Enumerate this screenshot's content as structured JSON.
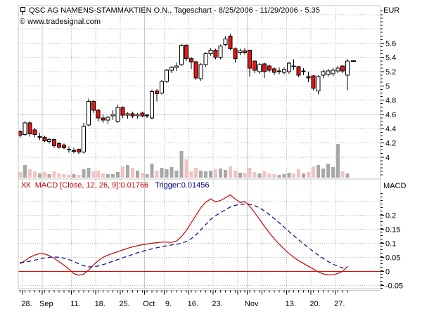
{
  "header": {
    "title": "QSC AG NAMENS-STAMMAKTIEN O.N., Tageschart - 8/25/2006 - 11/29/2006 - 5.35",
    "copyright": "© www.tradesignal.com"
  },
  "indicator_header": {
    "prefix": "XX",
    "macd": "MACD [Close, 12, 26, 9]:0.01766",
    "trigger": "Trigger:0.01456"
  },
  "axes": {
    "price": {
      "unit": "EUR",
      "tick_labels": [
        "5.6",
        "5.4",
        "5.2",
        "5",
        "4.8",
        "4.6",
        "4.4",
        "4.2",
        "4"
      ],
      "minor_step": 0.05,
      "solid_grid_level": 4.6
    },
    "macd": {
      "unit": "MACD",
      "tick_labels": [
        "0.2",
        "0.15",
        "0.1",
        "0.05",
        "0",
        "-0.05"
      ],
      "dotted_grid_levels": [
        0.25,
        0.2,
        0.15,
        0.1,
        0.05,
        -0.05
      ]
    },
    "time": {
      "labels": [
        {
          "text": "28.",
          "boundary_index": 1
        },
        {
          "text": "Sep",
          "boundary_index": 5
        },
        {
          "text": "11.",
          "boundary_index": 11
        },
        {
          "text": "18.",
          "boundary_index": 16
        },
        {
          "text": "25.",
          "boundary_index": 21
        },
        {
          "text": "Oct",
          "boundary_index": 26
        },
        {
          "text": "9.",
          "boundary_index": 30
        },
        {
          "text": "16.",
          "boundary_index": 35
        },
        {
          "text": "23.",
          "boundary_index": 40
        },
        {
          "text": "Nov",
          "boundary_index": 47
        },
        {
          "text": "13.",
          "boundary_index": 55
        },
        {
          "text": "20.",
          "boundary_index": 60
        },
        {
          "text": "27.",
          "boundary_index": 65
        }
      ],
      "week_grid_indices": [
        1,
        11,
        16,
        21,
        30,
        35,
        40,
        45,
        50,
        55,
        60,
        65
      ],
      "month_grid_indices": [
        5,
        26,
        47
      ],
      "major_tick_indices": [
        1,
        5,
        11,
        16,
        21,
        26,
        30,
        35,
        40,
        45,
        47,
        50,
        55,
        60,
        65
      ]
    }
  },
  "colors": {
    "grid_dotted": "#b6b6b6",
    "grid_solid": "#c9c9c9",
    "border": "#c4c4c4",
    "candle_up": "#ffffff",
    "candle_down": "#ee1111",
    "candle_stroke": "#000000",
    "volume_up": "#a8a8a8",
    "volume_down": "#f2c3c3",
    "macd_line": "#cc0000",
    "trigger_line": "#000080",
    "zero_line": "#dd0000"
  },
  "chart_data": [
    {
      "type": "candlestick",
      "title": "QSC AG daily price with volume",
      "unit": "EUR",
      "ylim": [
        3.7,
        6.13
      ],
      "last_price_marker": 5.35,
      "dates": [
        "8/25",
        "8/28",
        "8/29",
        "8/30",
        "8/31",
        "9/1",
        "9/4",
        "9/5",
        "9/6",
        "9/7",
        "9/8",
        "9/11",
        "9/12",
        "9/13",
        "9/14",
        "9/15",
        "9/18",
        "9/19",
        "9/20",
        "9/21",
        "9/22",
        "9/25",
        "9/26",
        "9/27",
        "9/28",
        "9/29",
        "10/2",
        "10/4",
        "10/5",
        "10/6",
        "10/9",
        "10/10",
        "10/11",
        "10/12",
        "10/13",
        "10/16",
        "10/17",
        "10/18",
        "10/19",
        "10/20",
        "10/23",
        "10/24",
        "10/25",
        "10/26",
        "10/27",
        "10/30",
        "10/31",
        "11/1",
        "11/2",
        "11/3",
        "11/6",
        "11/7",
        "11/8",
        "11/9",
        "11/10",
        "11/13",
        "11/14",
        "11/15",
        "11/16",
        "11/17",
        "11/20",
        "11/21",
        "11/22",
        "11/23",
        "11/24",
        "11/27",
        "11/28",
        "11/29"
      ],
      "open": [
        4.36,
        4.32,
        4.48,
        4.38,
        4.28,
        4.28,
        4.22,
        4.25,
        4.19,
        4.17,
        4.11,
        4.09,
        4.11,
        4.07,
        4.45,
        4.78,
        4.66,
        4.55,
        4.52,
        4.58,
        4.5,
        4.7,
        4.59,
        4.61,
        4.58,
        4.62,
        4.58,
        4.55,
        4.93,
        4.9,
        5.06,
        5.22,
        5.26,
        5.3,
        5.57,
        5.38,
        5.34,
        5.1,
        5.3,
        5.45,
        5.5,
        5.4,
        5.58,
        5.7,
        5.52,
        5.47,
        5.49,
        5.5,
        5.35,
        5.2,
        5.31,
        5.28,
        5.24,
        5.21,
        5.19,
        5.2,
        5.28,
        5.27,
        5.2,
        5.13,
        5.14,
        4.93,
        5.15,
        5.16,
        5.17,
        5.21,
        5.28,
        5.15
      ],
      "high": [
        4.38,
        4.51,
        4.5,
        4.41,
        4.34,
        4.3,
        4.27,
        4.26,
        4.21,
        4.19,
        4.15,
        4.13,
        4.12,
        4.48,
        4.82,
        4.8,
        4.68,
        4.6,
        4.58,
        4.66,
        4.73,
        4.71,
        4.63,
        4.64,
        4.62,
        4.64,
        4.61,
        4.95,
        4.96,
        5.08,
        5.24,
        5.28,
        5.33,
        5.59,
        5.59,
        5.4,
        5.35,
        5.32,
        5.47,
        5.53,
        5.52,
        5.58,
        5.7,
        5.73,
        5.54,
        5.52,
        5.53,
        5.51,
        5.36,
        5.32,
        5.33,
        5.3,
        5.26,
        5.26,
        5.26,
        5.34,
        5.37,
        5.28,
        5.25,
        5.2,
        5.15,
        5.15,
        5.23,
        5.24,
        5.25,
        5.28,
        5.29,
        5.37
      ],
      "low": [
        4.27,
        4.3,
        4.29,
        4.28,
        4.24,
        4.21,
        4.19,
        4.13,
        4.12,
        4.11,
        4.06,
        4.05,
        4.04,
        4.05,
        4.43,
        4.62,
        4.5,
        4.48,
        4.46,
        4.52,
        4.48,
        4.55,
        4.54,
        4.55,
        4.54,
        4.56,
        4.55,
        4.53,
        4.78,
        4.88,
        5.04,
        5.18,
        5.21,
        5.28,
        5.35,
        5.24,
        5.08,
        5.07,
        5.27,
        5.42,
        5.37,
        5.37,
        5.56,
        5.5,
        5.33,
        5.43,
        5.44,
        5.13,
        5.18,
        5.17,
        5.11,
        5.19,
        5.15,
        5.16,
        5.16,
        5.17,
        5.22,
        5.12,
        5.15,
        5.05,
        4.94,
        4.88,
        5.11,
        5.13,
        5.14,
        5.18,
        5.18,
        4.94
      ],
      "close": [
        4.31,
        4.48,
        4.33,
        4.32,
        4.29,
        4.23,
        4.25,
        4.16,
        4.14,
        4.13,
        4.1,
        4.09,
        4.07,
        4.43,
        4.78,
        4.66,
        4.55,
        4.52,
        4.56,
        4.6,
        4.7,
        4.59,
        4.61,
        4.58,
        4.6,
        4.58,
        4.59,
        4.92,
        4.89,
        5.06,
        5.22,
        5.26,
        5.28,
        5.57,
        5.38,
        5.34,
        5.11,
        5.3,
        5.45,
        5.5,
        5.4,
        5.56,
        5.66,
        5.52,
        5.38,
        5.49,
        5.47,
        5.25,
        5.22,
        5.3,
        5.2,
        5.22,
        5.19,
        5.21,
        5.23,
        5.32,
        5.27,
        5.15,
        5.21,
        5.11,
        4.97,
        5.13,
        5.2,
        5.21,
        5.22,
        5.25,
        5.21,
        5.35
      ],
      "volume_rel": [
        8,
        18,
        12,
        9,
        6,
        8,
        5,
        9,
        6,
        5,
        4,
        5,
        4,
        12,
        14,
        9,
        10,
        6,
        5,
        5,
        8,
        16,
        18,
        14,
        10,
        7,
        5,
        20,
        10,
        14,
        12,
        15,
        10,
        38,
        26,
        9,
        14,
        10,
        9,
        10,
        12,
        13,
        11,
        16,
        10,
        7,
        7,
        14,
        8,
        6,
        9,
        6,
        5,
        4,
        5,
        7,
        6,
        12,
        6,
        8,
        16,
        18,
        13,
        20,
        15,
        48,
        9,
        6
      ]
    },
    {
      "type": "line",
      "title": "MACD [Close, 12, 26, 9]",
      "ylim": [
        -0.061,
        0.322
      ],
      "current_macd": 0.01766,
      "current_trigger": 0.01456,
      "series": [
        {
          "name": "MACD",
          "style": "solid",
          "values": [
            0.027,
            0.038,
            0.05,
            0.058,
            0.063,
            0.062,
            0.056,
            0.046,
            0.034,
            0.022,
            0.008,
            -0.008,
            -0.014,
            -0.01,
            0.004,
            0.022,
            0.038,
            0.05,
            0.058,
            0.064,
            0.07,
            0.076,
            0.082,
            0.087,
            0.091,
            0.095,
            0.097,
            0.1,
            0.102,
            0.104,
            0.104,
            0.103,
            0.108,
            0.123,
            0.145,
            0.172,
            0.2,
            0.227,
            0.246,
            0.258,
            0.247,
            0.252,
            0.262,
            0.272,
            0.258,
            0.245,
            0.248,
            0.232,
            0.209,
            0.185,
            0.16,
            0.137,
            0.116,
            0.097,
            0.08,
            0.064,
            0.05,
            0.038,
            0.028,
            0.018,
            0.008,
            -0.002,
            -0.009,
            -0.013,
            -0.012,
            -0.008,
            0.0,
            0.01766
          ]
        },
        {
          "name": "Trigger",
          "style": "dashed",
          "values": [
            0.031,
            0.033,
            0.036,
            0.04,
            0.044,
            0.048,
            0.05,
            0.051,
            0.05,
            0.047,
            0.042,
            0.035,
            0.027,
            0.02,
            0.016,
            0.016,
            0.019,
            0.024,
            0.03,
            0.036,
            0.042,
            0.048,
            0.054,
            0.06,
            0.066,
            0.071,
            0.076,
            0.08,
            0.084,
            0.088,
            0.091,
            0.094,
            0.096,
            0.1,
            0.106,
            0.116,
            0.13,
            0.148,
            0.167,
            0.185,
            0.198,
            0.209,
            0.219,
            0.229,
            0.235,
            0.238,
            0.24,
            0.239,
            0.234,
            0.226,
            0.215,
            0.202,
            0.188,
            0.173,
            0.158,
            0.142,
            0.127,
            0.112,
            0.098,
            0.084,
            0.071,
            0.058,
            0.046,
            0.035,
            0.026,
            0.018,
            0.012,
            0.01456
          ]
        }
      ]
    }
  ]
}
